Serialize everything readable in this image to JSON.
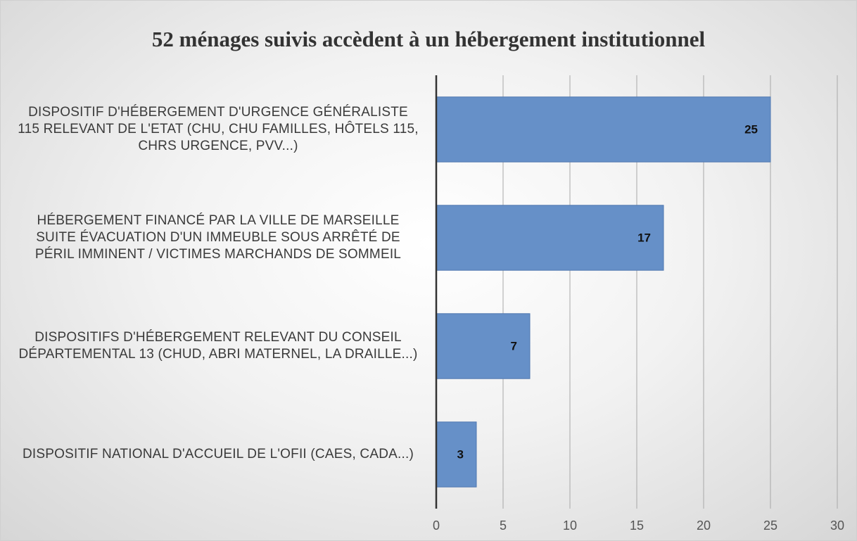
{
  "chart_data": {
    "type": "bar",
    "orientation": "horizontal",
    "title": "52 ménages suivis accèdent à un hébergement institutionnel",
    "categories": [
      "DISPOSITIF D'HÉBERGEMENT D'URGENCE GÉNÉRALISTE 115 RELEVANT DE L'ETAT (CHU, CHU FAMILLES, HÔTELS 115, CHRS URGENCE, PVV...)",
      "HÉBERGEMENT FINANCÉ PAR LA VILLE DE MARSEILLE SUITE ÉVACUATION D'UN IMMEUBLE SOUS ARRÊTÉ DE PÉRIL IMMINENT / VICTIMES MARCHANDS DE SOMMEIL",
      "DISPOSITIFS D'HÉBERGEMENT RELEVANT DU CONSEIL DÉPARTEMENTAL 13 (CHUD, ABRI MATERNEL, LA DRAILLE...)",
      "DISPOSITIF NATIONAL D'ACCUEIL DE L'OFII (CAES, CADA...)"
    ],
    "values": [
      25,
      17,
      7,
      3
    ],
    "color": "#6690c8",
    "xlim": [
      0,
      30
    ],
    "xticks": [
      0,
      5,
      10,
      15,
      20,
      25,
      30
    ],
    "grid": true
  }
}
